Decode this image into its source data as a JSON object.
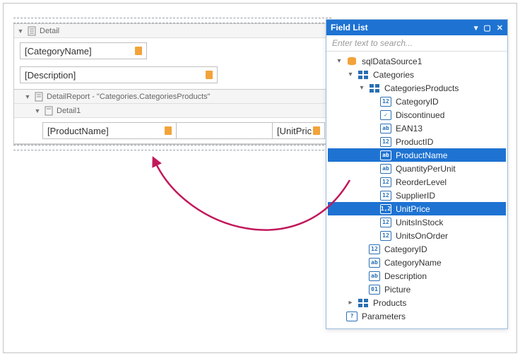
{
  "design": {
    "bands": {
      "detail": {
        "title": "Detail"
      },
      "categoryName": {
        "placeholder": "[CategoryName]"
      },
      "description": {
        "placeholder": "[Description]"
      },
      "detailReport": {
        "title": "DetailReport - \"Categories.CategoriesProducts\""
      },
      "detail1": {
        "title": "Detail1"
      },
      "productName": {
        "placeholder": "[ProductName]"
      },
      "unitPrice": {
        "placeholder": "[UnitPric"
      }
    }
  },
  "fieldList": {
    "title": "Field List",
    "searchPlaceholder": "Enter text to search...",
    "tree": [
      {
        "id": "sqlDataSource1",
        "label": "sqlDataSource1",
        "indent": 0,
        "twist": "down",
        "icon": "db",
        "interact": true
      },
      {
        "id": "categories",
        "label": "Categories",
        "indent": 1,
        "twist": "down",
        "icon": "grid",
        "interact": true
      },
      {
        "id": "categoriesProducts",
        "label": "CategoriesProducts",
        "indent": 2,
        "twist": "down",
        "icon": "grid",
        "interact": true
      },
      {
        "id": "categoryID_cp",
        "label": "CategoryID",
        "indent": 3,
        "twist": "",
        "icon": "12",
        "interact": true
      },
      {
        "id": "discontinued",
        "label": "Discontinued",
        "indent": 3,
        "twist": "",
        "icon": "chk",
        "interact": true
      },
      {
        "id": "ean13",
        "label": "EAN13",
        "indent": 3,
        "twist": "",
        "icon": "ab",
        "interact": true
      },
      {
        "id": "productID",
        "label": "ProductID",
        "indent": 3,
        "twist": "",
        "icon": "12",
        "interact": true
      },
      {
        "id": "productName",
        "label": "ProductName",
        "indent": 3,
        "twist": "",
        "icon": "ab",
        "interact": true,
        "selected": true
      },
      {
        "id": "quantityPerUnit",
        "label": "QuantityPerUnit",
        "indent": 3,
        "twist": "",
        "icon": "ab",
        "interact": true
      },
      {
        "id": "reorderLevel",
        "label": "ReorderLevel",
        "indent": 3,
        "twist": "",
        "icon": "12",
        "interact": true
      },
      {
        "id": "supplierID",
        "label": "SupplierID",
        "indent": 3,
        "twist": "",
        "icon": "12",
        "interact": true
      },
      {
        "id": "unitPrice",
        "label": "UnitPrice",
        "indent": 3,
        "twist": "",
        "icon": "1,2",
        "interact": true,
        "selected": true
      },
      {
        "id": "unitsInStock",
        "label": "UnitsInStock",
        "indent": 3,
        "twist": "",
        "icon": "12",
        "interact": true
      },
      {
        "id": "unitsOnOrder",
        "label": "UnitsOnOrder",
        "indent": 3,
        "twist": "",
        "icon": "12",
        "interact": true
      },
      {
        "id": "categoryID",
        "label": "CategoryID",
        "indent": 2,
        "twist": "",
        "icon": "12",
        "interact": true
      },
      {
        "id": "categoryName",
        "label": "CategoryName",
        "indent": 2,
        "twist": "",
        "icon": "ab",
        "interact": true
      },
      {
        "id": "description",
        "label": "Description",
        "indent": 2,
        "twist": "",
        "icon": "ab",
        "interact": true
      },
      {
        "id": "picture",
        "label": "Picture",
        "indent": 2,
        "twist": "",
        "icon": "01",
        "interact": true
      },
      {
        "id": "products",
        "label": "Products",
        "indent": 1,
        "twist": "right",
        "icon": "grid",
        "interact": true
      },
      {
        "id": "parameters",
        "label": "Parameters",
        "indent": 0,
        "twist": "",
        "icon": "?",
        "interact": true
      }
    ]
  },
  "style": {
    "accent": "#1e73d2",
    "arrow": "#c2185b",
    "border": "#c3c3c3",
    "databind": "#f2a33a"
  }
}
